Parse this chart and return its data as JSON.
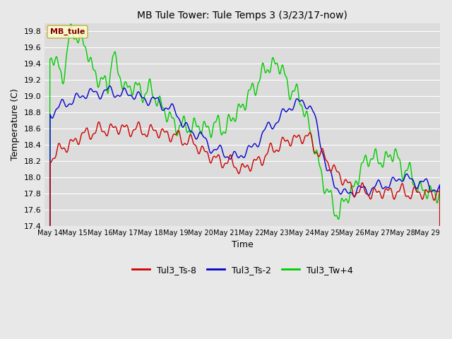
{
  "title": "MB Tule Tower: Tule Temps 3 (3/23/17-now)",
  "xlabel": "Time",
  "ylabel": "Temperature (C)",
  "ylim": [
    17.4,
    19.9
  ],
  "yticks": [
    17.4,
    17.6,
    17.8,
    18.0,
    18.2,
    18.4,
    18.6,
    18.8,
    19.0,
    19.2,
    19.4,
    19.6,
    19.8
  ],
  "xlim_days": [
    -0.2,
    15.5
  ],
  "x_tick_positions": [
    0,
    1,
    2,
    3,
    4,
    5,
    6,
    7,
    8,
    9,
    10,
    11,
    12,
    13,
    14,
    15
  ],
  "x_tick_labels": [
    "May 14",
    "May 15",
    "May 16",
    "May 17",
    "May 18",
    "May 19",
    "May 20",
    "May 21",
    "May 22",
    "May 23",
    "May 24",
    "May 25",
    "May 26",
    "May 27",
    "May 28",
    "May 29"
  ],
  "fig_bg_color": "#e8e8e8",
  "plot_bg_color": "#dcdcdc",
  "legend_label": "MB_tule",
  "legend_bg": "#ffffcc",
  "legend_border": "#bbaa44",
  "line_colors": {
    "Tul3_Ts-8": "#cc0000",
    "Tul3_Ts-2": "#0000cc",
    "Tul3_Tw+4": "#00cc00"
  },
  "series_labels": [
    "Tul3_Ts-8",
    "Tul3_Ts-2",
    "Tul3_Tw+4"
  ],
  "title_fontsize": 10,
  "axis_label_fontsize": 9,
  "tick_fontsize": 8
}
